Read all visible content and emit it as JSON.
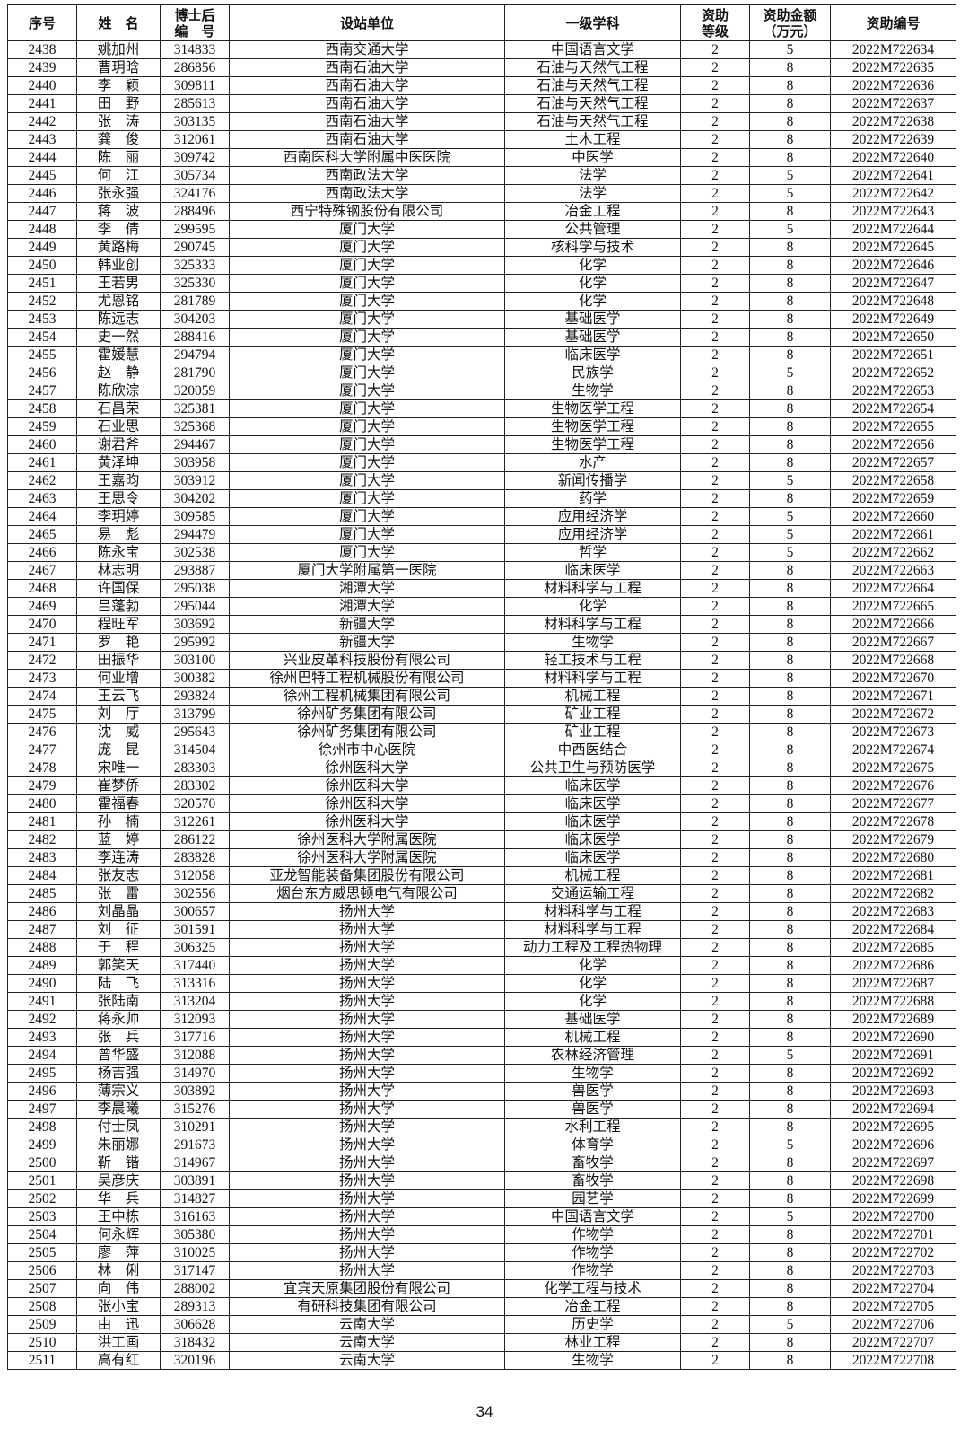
{
  "table": {
    "header": [
      [
        "序号"
      ],
      [
        "姓　名"
      ],
      [
        "博士后",
        "编　号"
      ],
      [
        "设站单位"
      ],
      [
        "一级学科"
      ],
      [
        "资助",
        "等级"
      ],
      [
        "资助金额",
        "（万元）"
      ],
      [
        "资助编号"
      ]
    ],
    "rows": [
      [
        "2438",
        "姚加州",
        "314833",
        "西南交通大学",
        "中国语言文学",
        "2",
        "5",
        "2022M722634"
      ],
      [
        "2439",
        "曹玥晗",
        "286856",
        "西南石油大学",
        "石油与天然气工程",
        "2",
        "8",
        "2022M722635"
      ],
      [
        "2440",
        "李　颖",
        "309811",
        "西南石油大学",
        "石油与天然气工程",
        "2",
        "8",
        "2022M722636"
      ],
      [
        "2441",
        "田　野",
        "285613",
        "西南石油大学",
        "石油与天然气工程",
        "2",
        "8",
        "2022M722637"
      ],
      [
        "2442",
        "张　涛",
        "303135",
        "西南石油大学",
        "石油与天然气工程",
        "2",
        "8",
        "2022M722638"
      ],
      [
        "2443",
        "龚　俊",
        "312061",
        "西南石油大学",
        "土木工程",
        "2",
        "8",
        "2022M722639"
      ],
      [
        "2444",
        "陈　丽",
        "309742",
        "西南医科大学附属中医医院",
        "中医学",
        "2",
        "8",
        "2022M722640"
      ],
      [
        "2445",
        "何　江",
        "305734",
        "西南政法大学",
        "法学",
        "2",
        "5",
        "2022M722641"
      ],
      [
        "2446",
        "张永强",
        "324176",
        "西南政法大学",
        "法学",
        "2",
        "5",
        "2022M722642"
      ],
      [
        "2447",
        "蒋　波",
        "288496",
        "西宁特殊钢股份有限公司",
        "冶金工程",
        "2",
        "8",
        "2022M722643"
      ],
      [
        "2448",
        "李　倩",
        "299595",
        "厦门大学",
        "公共管理",
        "2",
        "5",
        "2022M722644"
      ],
      [
        "2449",
        "黄路梅",
        "290745",
        "厦门大学",
        "核科学与技术",
        "2",
        "8",
        "2022M722645"
      ],
      [
        "2450",
        "韩业创",
        "325333",
        "厦门大学",
        "化学",
        "2",
        "8",
        "2022M722646"
      ],
      [
        "2451",
        "王若男",
        "325330",
        "厦门大学",
        "化学",
        "2",
        "8",
        "2022M722647"
      ],
      [
        "2452",
        "尤恩铭",
        "281789",
        "厦门大学",
        "化学",
        "2",
        "8",
        "2022M722648"
      ],
      [
        "2453",
        "陈远志",
        "304203",
        "厦门大学",
        "基础医学",
        "2",
        "8",
        "2022M722649"
      ],
      [
        "2454",
        "史一然",
        "288416",
        "厦门大学",
        "基础医学",
        "2",
        "8",
        "2022M722650"
      ],
      [
        "2455",
        "霍媛慧",
        "294794",
        "厦门大学",
        "临床医学",
        "2",
        "8",
        "2022M722651"
      ],
      [
        "2456",
        "赵　静",
        "281790",
        "厦门大学",
        "民族学",
        "2",
        "5",
        "2022M722652"
      ],
      [
        "2457",
        "陈欣淙",
        "320059",
        "厦门大学",
        "生物学",
        "2",
        "8",
        "2022M722653"
      ],
      [
        "2458",
        "石昌荣",
        "325381",
        "厦门大学",
        "生物医学工程",
        "2",
        "8",
        "2022M722654"
      ],
      [
        "2459",
        "石业思",
        "325368",
        "厦门大学",
        "生物医学工程",
        "2",
        "8",
        "2022M722655"
      ],
      [
        "2460",
        "谢君斧",
        "294467",
        "厦门大学",
        "生物医学工程",
        "2",
        "8",
        "2022M722656"
      ],
      [
        "2461",
        "黄泽坤",
        "303958",
        "厦门大学",
        "水产",
        "2",
        "8",
        "2022M722657"
      ],
      [
        "2462",
        "王嘉昀",
        "303912",
        "厦门大学",
        "新闻传播学",
        "2",
        "5",
        "2022M722658"
      ],
      [
        "2463",
        "王思令",
        "304202",
        "厦门大学",
        "药学",
        "2",
        "8",
        "2022M722659"
      ],
      [
        "2464",
        "李玥婷",
        "309585",
        "厦门大学",
        "应用经济学",
        "2",
        "5",
        "2022M722660"
      ],
      [
        "2465",
        "易　彪",
        "294479",
        "厦门大学",
        "应用经济学",
        "2",
        "5",
        "2022M722661"
      ],
      [
        "2466",
        "陈永宝",
        "302538",
        "厦门大学",
        "哲学",
        "2",
        "5",
        "2022M722662"
      ],
      [
        "2467",
        "林志明",
        "293887",
        "厦门大学附属第一医院",
        "临床医学",
        "2",
        "8",
        "2022M722663"
      ],
      [
        "2468",
        "许国保",
        "295038",
        "湘潭大学",
        "材料科学与工程",
        "2",
        "8",
        "2022M722664"
      ],
      [
        "2469",
        "吕蓬勃",
        "295044",
        "湘潭大学",
        "化学",
        "2",
        "8",
        "2022M722665"
      ],
      [
        "2470",
        "程旺军",
        "303692",
        "新疆大学",
        "材料科学与工程",
        "2",
        "8",
        "2022M722666"
      ],
      [
        "2471",
        "罗　艳",
        "295992",
        "新疆大学",
        "生物学",
        "2",
        "8",
        "2022M722667"
      ],
      [
        "2472",
        "田振华",
        "303100",
        "兴业皮革科技股份有限公司",
        "轻工技术与工程",
        "2",
        "8",
        "2022M722668"
      ],
      [
        "2473",
        "何业增",
        "300382",
        "徐州巴特工程机械股份有限公司",
        "材料科学与工程",
        "2",
        "8",
        "2022M722670"
      ],
      [
        "2474",
        "王云飞",
        "293824",
        "徐州工程机械集团有限公司",
        "机械工程",
        "2",
        "8",
        "2022M722671"
      ],
      [
        "2475",
        "刘　厅",
        "313799",
        "徐州矿务集团有限公司",
        "矿业工程",
        "2",
        "8",
        "2022M722672"
      ],
      [
        "2476",
        "沈　威",
        "295643",
        "徐州矿务集团有限公司",
        "矿业工程",
        "2",
        "8",
        "2022M722673"
      ],
      [
        "2477",
        "庞　昆",
        "314504",
        "徐州市中心医院",
        "中西医结合",
        "2",
        "8",
        "2022M722674"
      ],
      [
        "2478",
        "宋唯一",
        "283303",
        "徐州医科大学",
        "公共卫生与预防医学",
        "2",
        "8",
        "2022M722675"
      ],
      [
        "2479",
        "崔梦侨",
        "283302",
        "徐州医科大学",
        "临床医学",
        "2",
        "8",
        "2022M722676"
      ],
      [
        "2480",
        "霍福春",
        "320570",
        "徐州医科大学",
        "临床医学",
        "2",
        "8",
        "2022M722677"
      ],
      [
        "2481",
        "孙　楠",
        "312261",
        "徐州医科大学",
        "临床医学",
        "2",
        "8",
        "2022M722678"
      ],
      [
        "2482",
        "蓝　婷",
        "286122",
        "徐州医科大学附属医院",
        "临床医学",
        "2",
        "8",
        "2022M722679"
      ],
      [
        "2483",
        "李连涛",
        "283828",
        "徐州医科大学附属医院",
        "临床医学",
        "2",
        "8",
        "2022M722680"
      ],
      [
        "2484",
        "张友志",
        "312058",
        "亚龙智能装备集团股份有限公司",
        "机械工程",
        "2",
        "8",
        "2022M722681"
      ],
      [
        "2485",
        "张　雷",
        "302556",
        "烟台东方威思顿电气有限公司",
        "交通运输工程",
        "2",
        "8",
        "2022M722682"
      ],
      [
        "2486",
        "刘晶晶",
        "300657",
        "扬州大学",
        "材料科学与工程",
        "2",
        "8",
        "2022M722683"
      ],
      [
        "2487",
        "刘　征",
        "301591",
        "扬州大学",
        "材料科学与工程",
        "2",
        "8",
        "2022M722684"
      ],
      [
        "2488",
        "于　程",
        "306325",
        "扬州大学",
        "动力工程及工程热物理",
        "2",
        "8",
        "2022M722685"
      ],
      [
        "2489",
        "郭笑天",
        "317440",
        "扬州大学",
        "化学",
        "2",
        "8",
        "2022M722686"
      ],
      [
        "2490",
        "陆　飞",
        "313316",
        "扬州大学",
        "化学",
        "2",
        "8",
        "2022M722687"
      ],
      [
        "2491",
        "张陆南",
        "313204",
        "扬州大学",
        "化学",
        "2",
        "8",
        "2022M722688"
      ],
      [
        "2492",
        "蒋永帅",
        "312093",
        "扬州大学",
        "基础医学",
        "2",
        "8",
        "2022M722689"
      ],
      [
        "2493",
        "张　兵",
        "317716",
        "扬州大学",
        "机械工程",
        "2",
        "8",
        "2022M722690"
      ],
      [
        "2494",
        "曾华盛",
        "312088",
        "扬州大学",
        "农林经济管理",
        "2",
        "5",
        "2022M722691"
      ],
      [
        "2495",
        "杨吉强",
        "314970",
        "扬州大学",
        "生物学",
        "2",
        "8",
        "2022M722692"
      ],
      [
        "2496",
        "薄宗义",
        "303892",
        "扬州大学",
        "兽医学",
        "2",
        "8",
        "2022M722693"
      ],
      [
        "2497",
        "李晨曦",
        "315276",
        "扬州大学",
        "兽医学",
        "2",
        "8",
        "2022M722694"
      ],
      [
        "2498",
        "付士凤",
        "310291",
        "扬州大学",
        "水利工程",
        "2",
        "8",
        "2022M722695"
      ],
      [
        "2499",
        "朱丽娜",
        "291673",
        "扬州大学",
        "体育学",
        "2",
        "5",
        "2022M722696"
      ],
      [
        "2500",
        "靳　锴",
        "314967",
        "扬州大学",
        "畜牧学",
        "2",
        "8",
        "2022M722697"
      ],
      [
        "2501",
        "吴彦庆",
        "303891",
        "扬州大学",
        "畜牧学",
        "2",
        "8",
        "2022M722698"
      ],
      [
        "2502",
        "华　兵",
        "314827",
        "扬州大学",
        "园艺学",
        "2",
        "8",
        "2022M722699"
      ],
      [
        "2503",
        "王中栋",
        "316163",
        "扬州大学",
        "中国语言文学",
        "2",
        "5",
        "2022M722700"
      ],
      [
        "2504",
        "何永辉",
        "305380",
        "扬州大学",
        "作物学",
        "2",
        "8",
        "2022M722701"
      ],
      [
        "2505",
        "廖　萍",
        "310025",
        "扬州大学",
        "作物学",
        "2",
        "8",
        "2022M722702"
      ],
      [
        "2506",
        "林　俐",
        "317147",
        "扬州大学",
        "作物学",
        "2",
        "8",
        "2022M722703"
      ],
      [
        "2507",
        "向　伟",
        "288002",
        "宜宾天原集团股份有限公司",
        "化学工程与技术",
        "2",
        "8",
        "2022M722704"
      ],
      [
        "2508",
        "张小宝",
        "289313",
        "有研科技集团有限公司",
        "冶金工程",
        "2",
        "8",
        "2022M722705"
      ],
      [
        "2509",
        "由　迅",
        "306628",
        "云南大学",
        "历史学",
        "2",
        "5",
        "2022M722706"
      ],
      [
        "2510",
        "洪工画",
        "318432",
        "云南大学",
        "林业工程",
        "2",
        "8",
        "2022M722707"
      ],
      [
        "2511",
        "高有红",
        "320196",
        "云南大学",
        "生物学",
        "2",
        "8",
        "2022M722708"
      ]
    ]
  },
  "footer": {
    "page_number": "34"
  }
}
